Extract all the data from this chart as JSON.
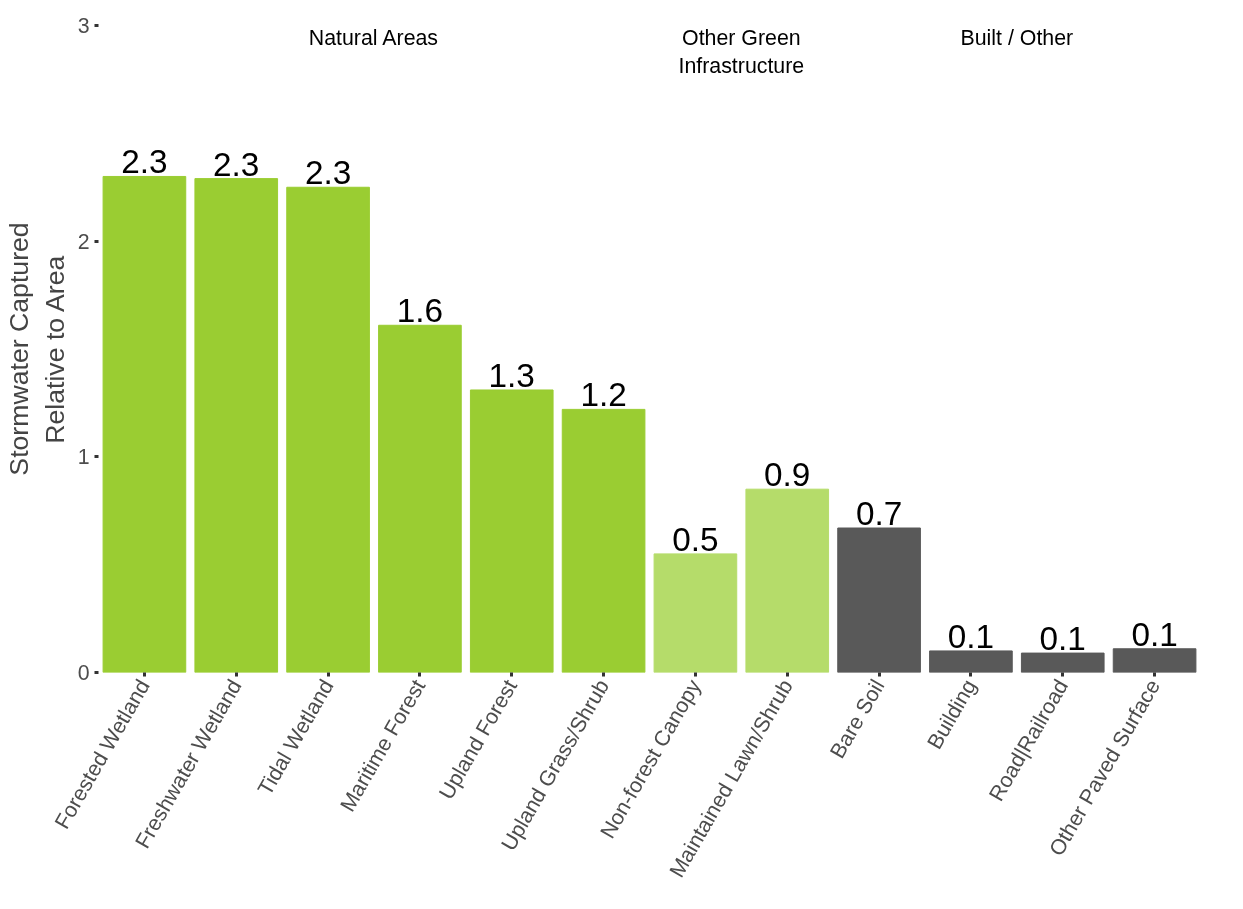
{
  "chart_data": {
    "type": "bar",
    "ylabel": "Stormwater Captured\nRelative to Area",
    "categories": [
      "Forested Wetland",
      "Freshwater Wetland",
      "Tidal Wetland",
      "Maritime Forest",
      "Upland Forest",
      "Upland Grass/Shrub",
      "Non-forest Canopy",
      "Maintained Lawn/Shrub",
      "Bare Soil",
      "Building",
      "Road|Railroad",
      "Other Paved Surface"
    ],
    "values": [
      2.3,
      2.29,
      2.25,
      1.61,
      1.31,
      1.22,
      0.55,
      0.85,
      0.67,
      0.1,
      0.09,
      0.11
    ],
    "value_labels": [
      "2.3",
      "2.3",
      "2.3",
      "1.6",
      "1.3",
      "1.2",
      "0.5",
      "0.9",
      "0.7",
      "0.1",
      "0.1",
      "0.1"
    ],
    "colors": [
      "#9acd32",
      "#9acd32",
      "#9acd32",
      "#9acd32",
      "#9acd32",
      "#9acd32",
      "#b5dc6a",
      "#b5dc6a",
      "#595959",
      "#595959",
      "#595959",
      "#595959"
    ],
    "annotations": [
      "Natural Areas",
      "Other Green\nInfrastructure",
      "Built / Other"
    ],
    "ylim": [
      0,
      3
    ],
    "yticks": [
      0,
      1,
      2,
      3
    ],
    "grid": false
  }
}
